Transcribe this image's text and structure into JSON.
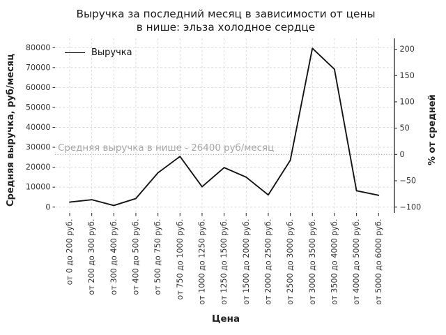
{
  "chart_data": {
    "type": "line",
    "title": "Выручка за последний месяц в зависимости от цены в нише: эльза холодное сердце",
    "title_lines": [
      "Выручка за последний месяц в зависимости от цены",
      "в нише: эльза холодное сердце"
    ],
    "xlabel": "Цена",
    "ylabel_left": "Средняя выручка, руб/месяц",
    "ylabel_right": "% от средней",
    "categories": [
      "от 0 до 200 руб.",
      "от 200 до 300 руб.",
      "от 300 до 400 руб.",
      "от 400 до 500 руб.",
      "от 500 до 750 руб.",
      "от 750 до 1000 руб.",
      "от 1000 до 1250 руб.",
      "от 1250 до 1500 руб.",
      "от 1500 до 2000 руб.",
      "от 2000 до 2500 руб.",
      "от 2500 до 3000 руб.",
      "от 3000 до 3500 руб.",
      "от 3500 до 4000 руб.",
      "от 4000 до 5000 руб.",
      "от 5000 до 6000 руб."
    ],
    "series": [
      {
        "name": "Выручка",
        "color": "#141414",
        "values": [
          2500,
          3700,
          800,
          4300,
          17200,
          25400,
          10200,
          19800,
          15000,
          6100,
          23500,
          79700,
          69200,
          8200,
          5900
        ]
      }
    ],
    "mean_line": {
      "value": 26400,
      "label": "Средняя выручка в нише - 26400 руб/месяц",
      "color": "#a5a5a5"
    },
    "y_left_ticks": [
      0,
      10000,
      20000,
      30000,
      40000,
      50000,
      60000,
      70000,
      80000
    ],
    "y_right_ticks": [
      -100,
      -50,
      0,
      50,
      100,
      150,
      200
    ],
    "ylim_left": [
      -2900,
      84700
    ],
    "grid": true,
    "legend_position": "upper-left",
    "colors": {
      "line": "#141414",
      "grid": "#dbdbdb",
      "mean": "#a5a5a5",
      "tick_text": "#343434",
      "title_text": "#1c1c1c"
    }
  }
}
